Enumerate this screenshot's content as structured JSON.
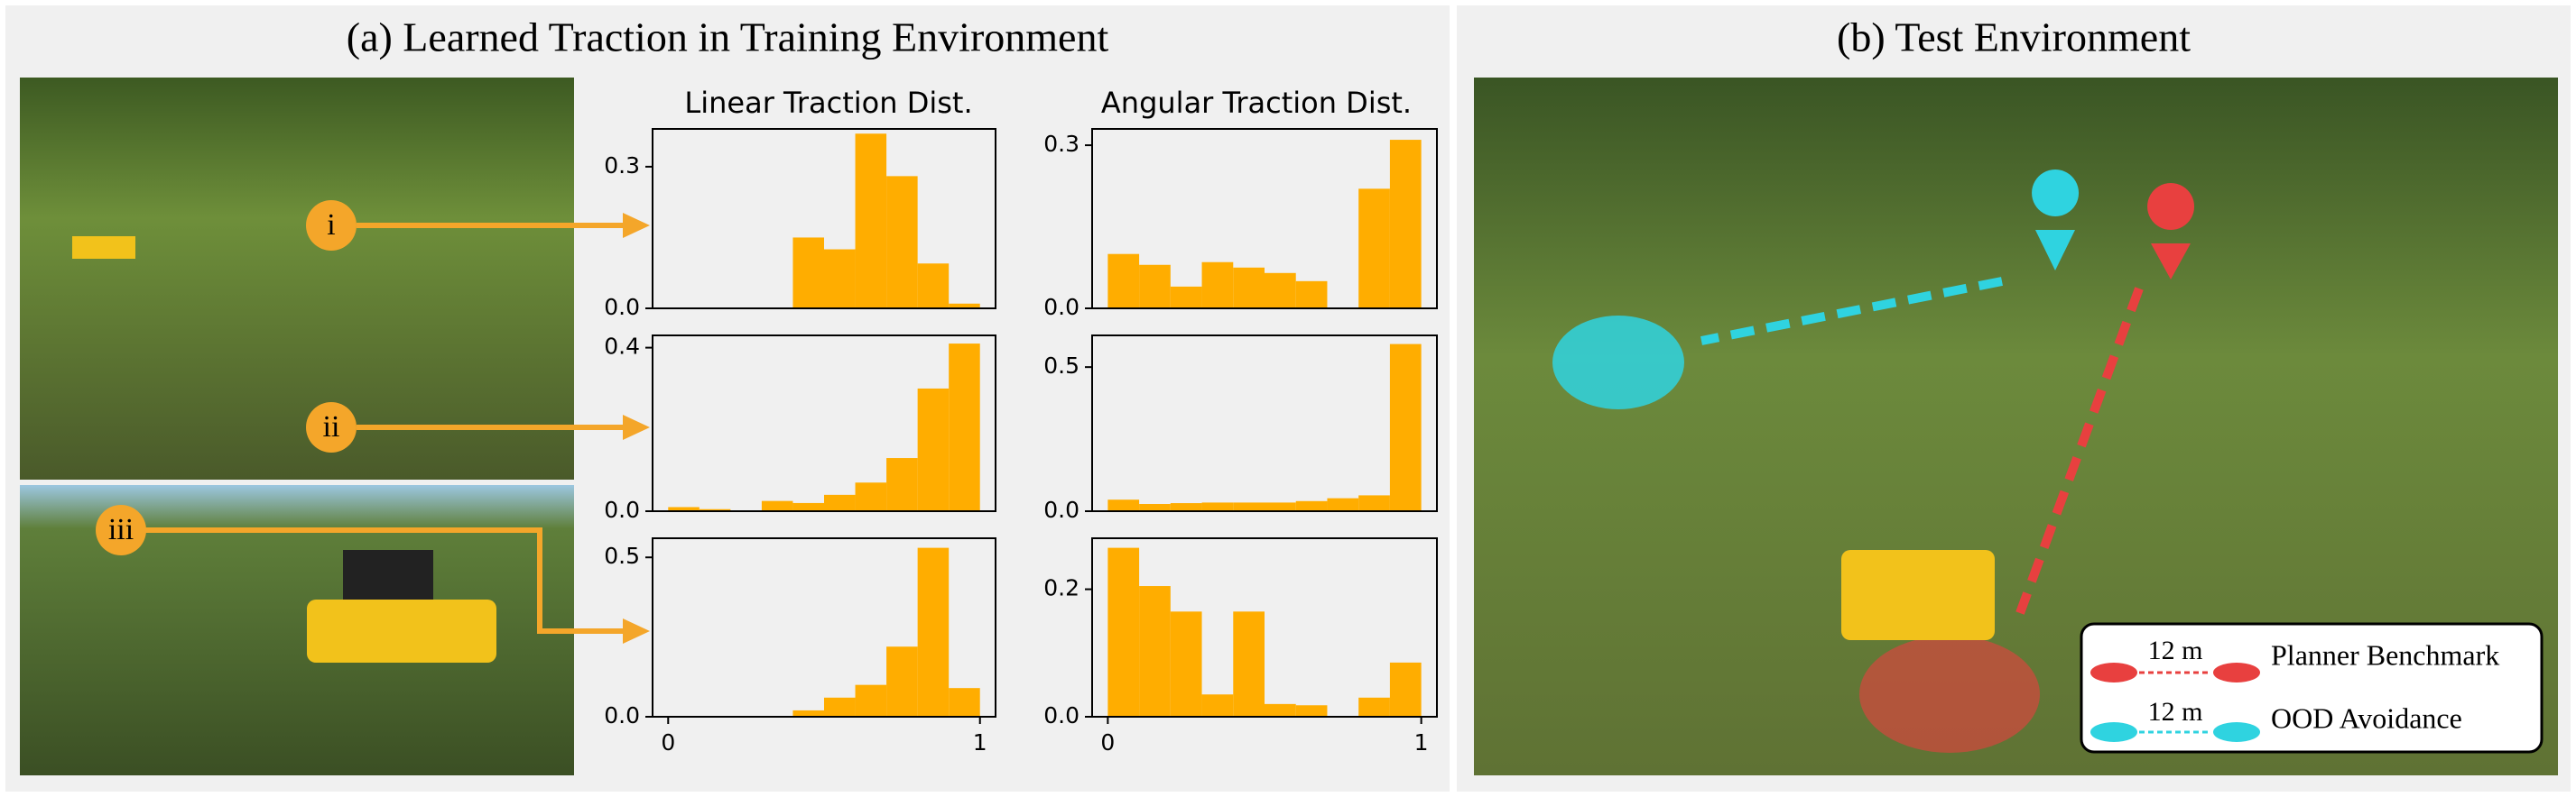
{
  "panel_a_title": "(a) Learned Traction in Training Environment",
  "panel_b_title": "(b) Test Environment",
  "column_titles": [
    "Linear Traction Dist.",
    "Angular Traction Dist."
  ],
  "markers": [
    "i",
    "ii",
    "iii"
  ],
  "legend": [
    {
      "distance": "12 m",
      "label": "Planner Benchmark",
      "color": "#e8403f"
    },
    {
      "distance": "12 m",
      "label": "OOD Avoidance",
      "color": "#2fd3e0"
    }
  ],
  "chart_data": [
    {
      "type": "histogram",
      "color": "#ffad00",
      "bins": [
        0,
        0.1,
        0.2,
        0.3,
        0.4,
        0.5,
        0.6,
        0.7,
        0.8,
        0.9,
        1
      ],
      "values": [
        0,
        0,
        0,
        0,
        0.15,
        0.125,
        0.37,
        0.28,
        0.095,
        0.01
      ],
      "xlim": [
        -0.05,
        1.05
      ],
      "ylim": [
        0,
        0.38
      ],
      "yticks": [
        {
          "value": 0,
          "label": "0.0"
        },
        0.3
      ]
    },
    {
      "type": "histogram",
      "color": "#ffad00",
      "bins": [
        0,
        0.1,
        0.2,
        0.3,
        0.4,
        0.5,
        0.6,
        0.7,
        0.8,
        0.9,
        1
      ],
      "values": [
        0.1,
        0.08,
        0.04,
        0.085,
        0.075,
        0.065,
        0.05,
        0,
        0.22,
        0.31
      ],
      "xlim": [
        -0.05,
        1.05
      ],
      "ylim": [
        0,
        0.33
      ],
      "yticks": [
        {
          "value": 0,
          "label": "0.0"
        },
        0.3
      ]
    },
    {
      "type": "histogram",
      "color": "#ffad00",
      "bins": [
        0,
        0.1,
        0.2,
        0.3,
        0.4,
        0.5,
        0.6,
        0.7,
        0.8,
        0.9,
        1
      ],
      "values": [
        0.01,
        0.005,
        0,
        0.025,
        0.02,
        0.04,
        0.07,
        0.13,
        0.3,
        0.41
      ],
      "xlim": [
        -0.05,
        1.05
      ],
      "ylim": [
        0,
        0.43
      ],
      "yticks": [
        {
          "value": 0,
          "label": "0.0"
        },
        0.4
      ]
    },
    {
      "type": "histogram",
      "color": "#ffad00",
      "bins": [
        0,
        0.1,
        0.2,
        0.3,
        0.4,
        0.5,
        0.6,
        0.7,
        0.8,
        0.9,
        1
      ],
      "values": [
        0.04,
        0.025,
        0.028,
        0.03,
        0.03,
        0.03,
        0.035,
        0.045,
        0.055,
        0.58
      ],
      "xlim": [
        -0.05,
        1.05
      ],
      "ylim": [
        0,
        0.61
      ],
      "yticks": [
        {
          "value": 0,
          "label": "0.0"
        },
        0.5
      ]
    },
    {
      "type": "histogram",
      "color": "#ffad00",
      "bins": [
        0,
        0.1,
        0.2,
        0.3,
        0.4,
        0.5,
        0.6,
        0.7,
        0.8,
        0.9,
        1
      ],
      "values": [
        0,
        0,
        0,
        0,
        0.02,
        0.06,
        0.1,
        0.22,
        0.53,
        0.09
      ],
      "xlim": [
        -0.05,
        1.05
      ],
      "ylim": [
        0,
        0.56
      ],
      "yticks": [
        {
          "value": 0,
          "label": "0.0"
        },
        0.5
      ],
      "xticks": [
        0,
        1
      ]
    },
    {
      "type": "histogram",
      "color": "#ffad00",
      "bins": [
        0,
        0.1,
        0.2,
        0.3,
        0.4,
        0.5,
        0.6,
        0.7,
        0.8,
        0.9,
        1
      ],
      "values": [
        0.265,
        0.205,
        0.165,
        0.035,
        0.165,
        0.02,
        0.018,
        0,
        0.03,
        0.085
      ],
      "xlim": [
        -0.05,
        1.05
      ],
      "ylim": [
        0,
        0.28
      ],
      "yticks": [
        {
          "value": 0,
          "label": "0.0"
        },
        0.2
      ],
      "xticks": [
        0,
        1
      ]
    }
  ]
}
